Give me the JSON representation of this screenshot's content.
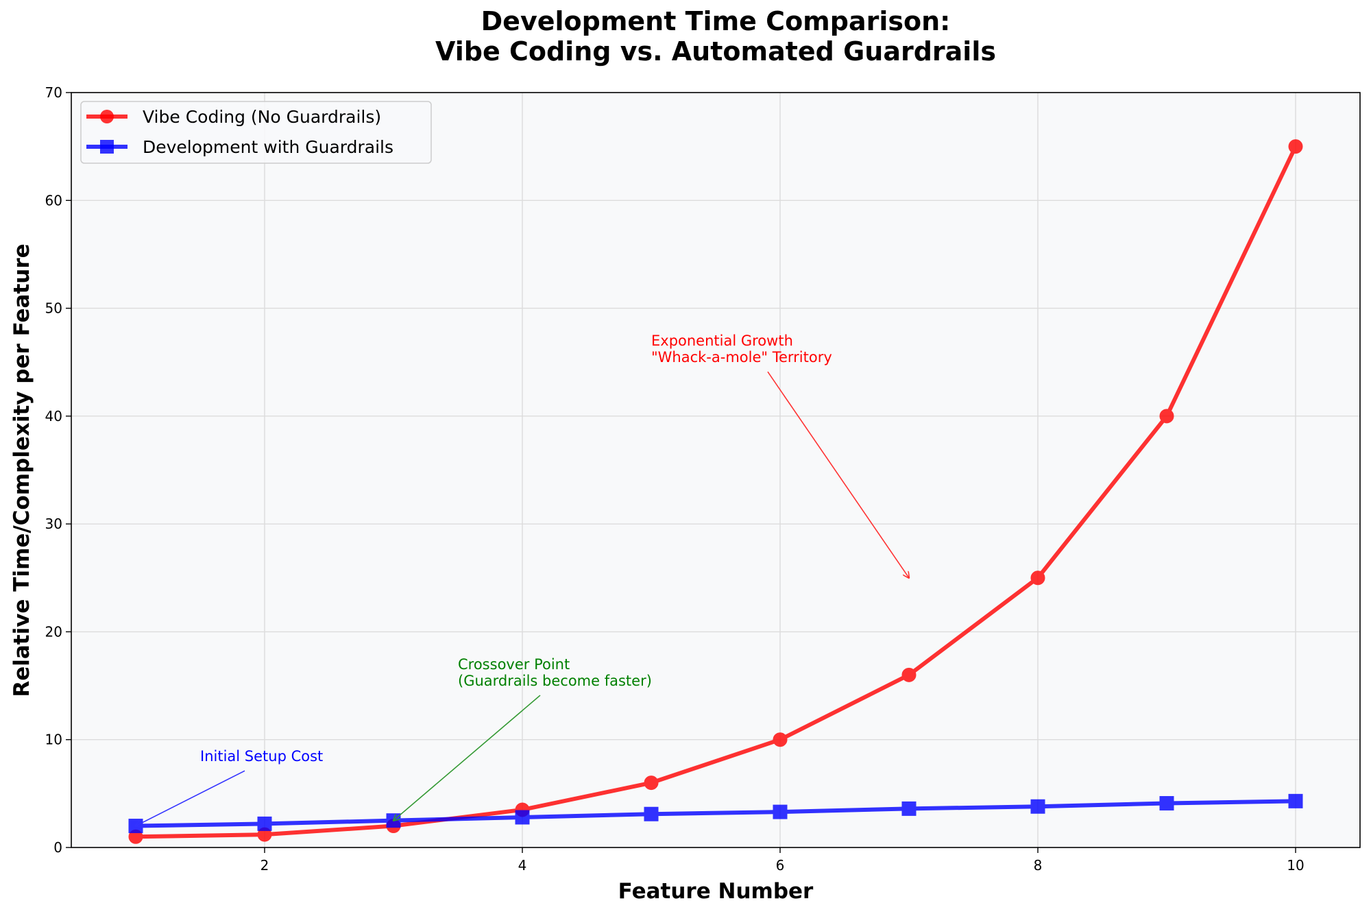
{
  "chart_data": {
    "type": "line",
    "title": "Development Time Comparison:\nVibe Coding vs. Automated Guardrails",
    "title_lines": [
      "Development Time Comparison:",
      "Vibe Coding vs. Automated Guardrails"
    ],
    "xlabel": "Feature Number",
    "ylabel": "Relative Time/Complexity per Feature",
    "x": [
      1,
      2,
      3,
      4,
      5,
      6,
      7,
      8,
      9,
      10
    ],
    "xlim": [
      0.5,
      10.5
    ],
    "ylim": [
      0,
      70
    ],
    "xticks": [
      2,
      4,
      6,
      8,
      10
    ],
    "yticks": [
      0,
      10,
      20,
      30,
      40,
      50,
      60,
      70
    ],
    "grid": true,
    "legend_position": "upper left",
    "background": "#f8f9fa",
    "series": [
      {
        "name": "Vibe Coding (No Guardrails)",
        "color": "#ff0000",
        "marker": "circle",
        "values": [
          1,
          1.2,
          2,
          3.5,
          6,
          10,
          16,
          25,
          40,
          65
        ]
      },
      {
        "name": "Development with Guardrails",
        "color": "#0000ff",
        "marker": "square",
        "values": [
          2,
          2.2,
          2.5,
          2.8,
          3.1,
          3.3,
          3.6,
          3.8,
          4.1,
          4.3
        ]
      }
    ],
    "annotations": [
      {
        "lines": [
          "Initial Setup Cost"
        ],
        "color": "#0000ff",
        "text_xy": [
          1.5,
          8
        ],
        "arrow_xy": [
          1,
          2
        ]
      },
      {
        "lines": [
          "Crossover Point",
          "(Guardrails become faster)"
        ],
        "color": "#008000",
        "text_xy": [
          3.5,
          15
        ],
        "arrow_xy": [
          3,
          2.5
        ]
      },
      {
        "lines": [
          "Exponential Growth",
          "\"Whack-a-mole\" Territory"
        ],
        "color": "#ff0000",
        "text_xy": [
          5,
          45
        ],
        "arrow_xy": [
          7,
          25
        ]
      }
    ]
  }
}
